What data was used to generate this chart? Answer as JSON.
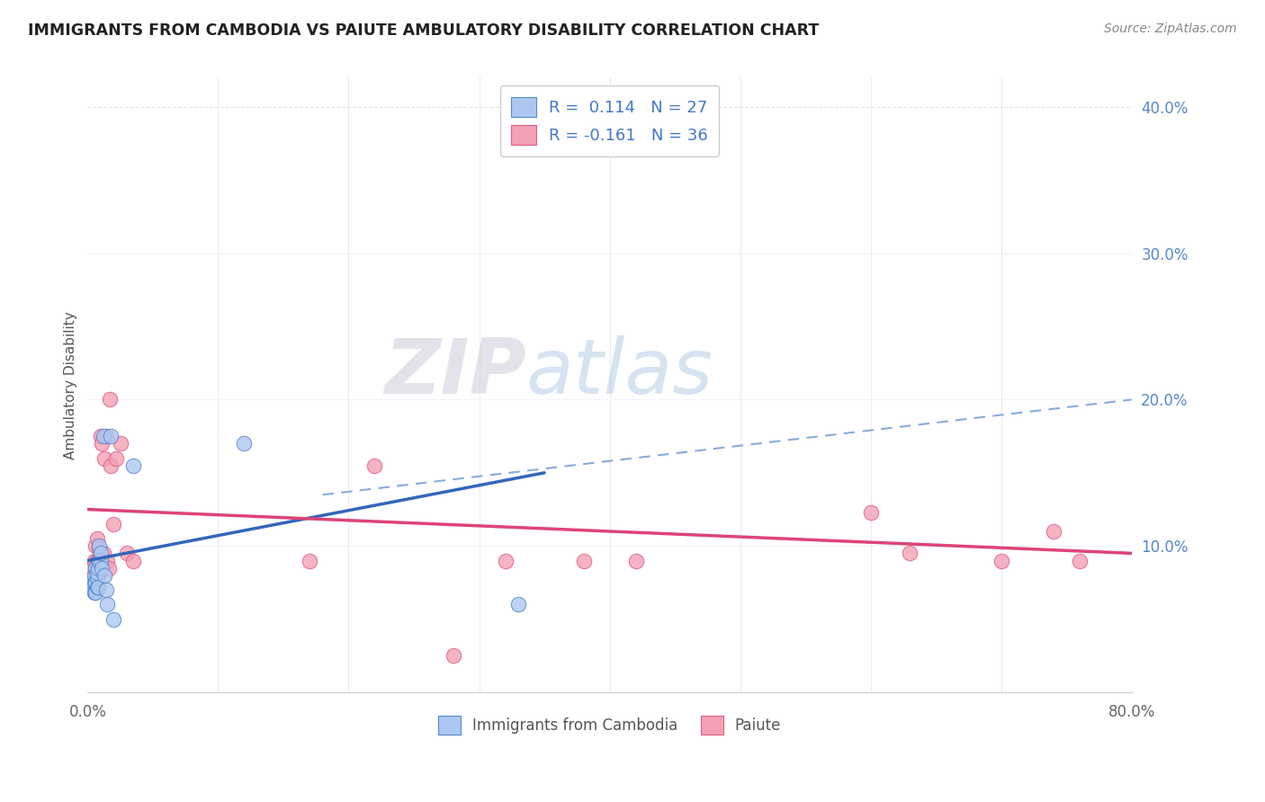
{
  "title": "IMMIGRANTS FROM CAMBODIA VS PAIUTE AMBULATORY DISABILITY CORRELATION CHART",
  "source": "Source: ZipAtlas.com",
  "ylabel": "Ambulatory Disability",
  "xlim": [
    0,
    0.8
  ],
  "ylim": [
    0,
    0.42
  ],
  "right_yticks": [
    0.1,
    0.2,
    0.3,
    0.4
  ],
  "right_yticklabels": [
    "10.0%",
    "20.0%",
    "30.0%",
    "40.0%"
  ],
  "blue_R": 0.114,
  "blue_N": 27,
  "pink_R": -0.161,
  "pink_N": 36,
  "blue_color": "#adc8f0",
  "pink_color": "#f4a0b5",
  "blue_edge_color": "#5588cc",
  "pink_edge_color": "#e06080",
  "blue_line_color": "#3366bb",
  "pink_line_color": "#dd4477",
  "dashed_line_color": "#88aadd",
  "grid_color": "#e0e0ee",
  "background_color": "#ffffff",
  "watermark_color": "#dde5f5",
  "blue_scatter_x": [
    0.004,
    0.004,
    0.005,
    0.005,
    0.005,
    0.006,
    0.006,
    0.006,
    0.007,
    0.007,
    0.007,
    0.008,
    0.008,
    0.009,
    0.009,
    0.01,
    0.01,
    0.011,
    0.012,
    0.013,
    0.014,
    0.015,
    0.018,
    0.02,
    0.035,
    0.12,
    0.33
  ],
  "blue_scatter_y": [
    0.07,
    0.075,
    0.068,
    0.075,
    0.08,
    0.068,
    0.075,
    0.085,
    0.072,
    0.078,
    0.082,
    0.072,
    0.085,
    0.09,
    0.1,
    0.09,
    0.095,
    0.085,
    0.175,
    0.08,
    0.07,
    0.06,
    0.175,
    0.05,
    0.155,
    0.17,
    0.06
  ],
  "pink_scatter_x": [
    0.004,
    0.005,
    0.005,
    0.006,
    0.006,
    0.007,
    0.007,
    0.008,
    0.008,
    0.009,
    0.01,
    0.01,
    0.011,
    0.012,
    0.013,
    0.014,
    0.015,
    0.016,
    0.017,
    0.018,
    0.02,
    0.022,
    0.025,
    0.03,
    0.035,
    0.17,
    0.22,
    0.28,
    0.32,
    0.38,
    0.42,
    0.6,
    0.63,
    0.7,
    0.74,
    0.76
  ],
  "pink_scatter_y": [
    0.085,
    0.09,
    0.08,
    0.1,
    0.075,
    0.09,
    0.105,
    0.08,
    0.09,
    0.098,
    0.09,
    0.175,
    0.17,
    0.095,
    0.16,
    0.175,
    0.09,
    0.085,
    0.2,
    0.155,
    0.115,
    0.16,
    0.17,
    0.095,
    0.09,
    0.09,
    0.155,
    0.025,
    0.09,
    0.09,
    0.09,
    0.123,
    0.095,
    0.09,
    0.11,
    0.09
  ],
  "blue_line_x0": 0.0,
  "blue_line_x1": 0.35,
  "blue_line_y0": 0.09,
  "blue_line_y1": 0.15,
  "pink_line_x0": 0.0,
  "pink_line_x1": 0.8,
  "pink_line_y0": 0.125,
  "pink_line_y1": 0.095,
  "dashed_line_x0": 0.18,
  "dashed_line_x1": 0.8,
  "dashed_line_y0": 0.135,
  "dashed_line_y1": 0.2
}
